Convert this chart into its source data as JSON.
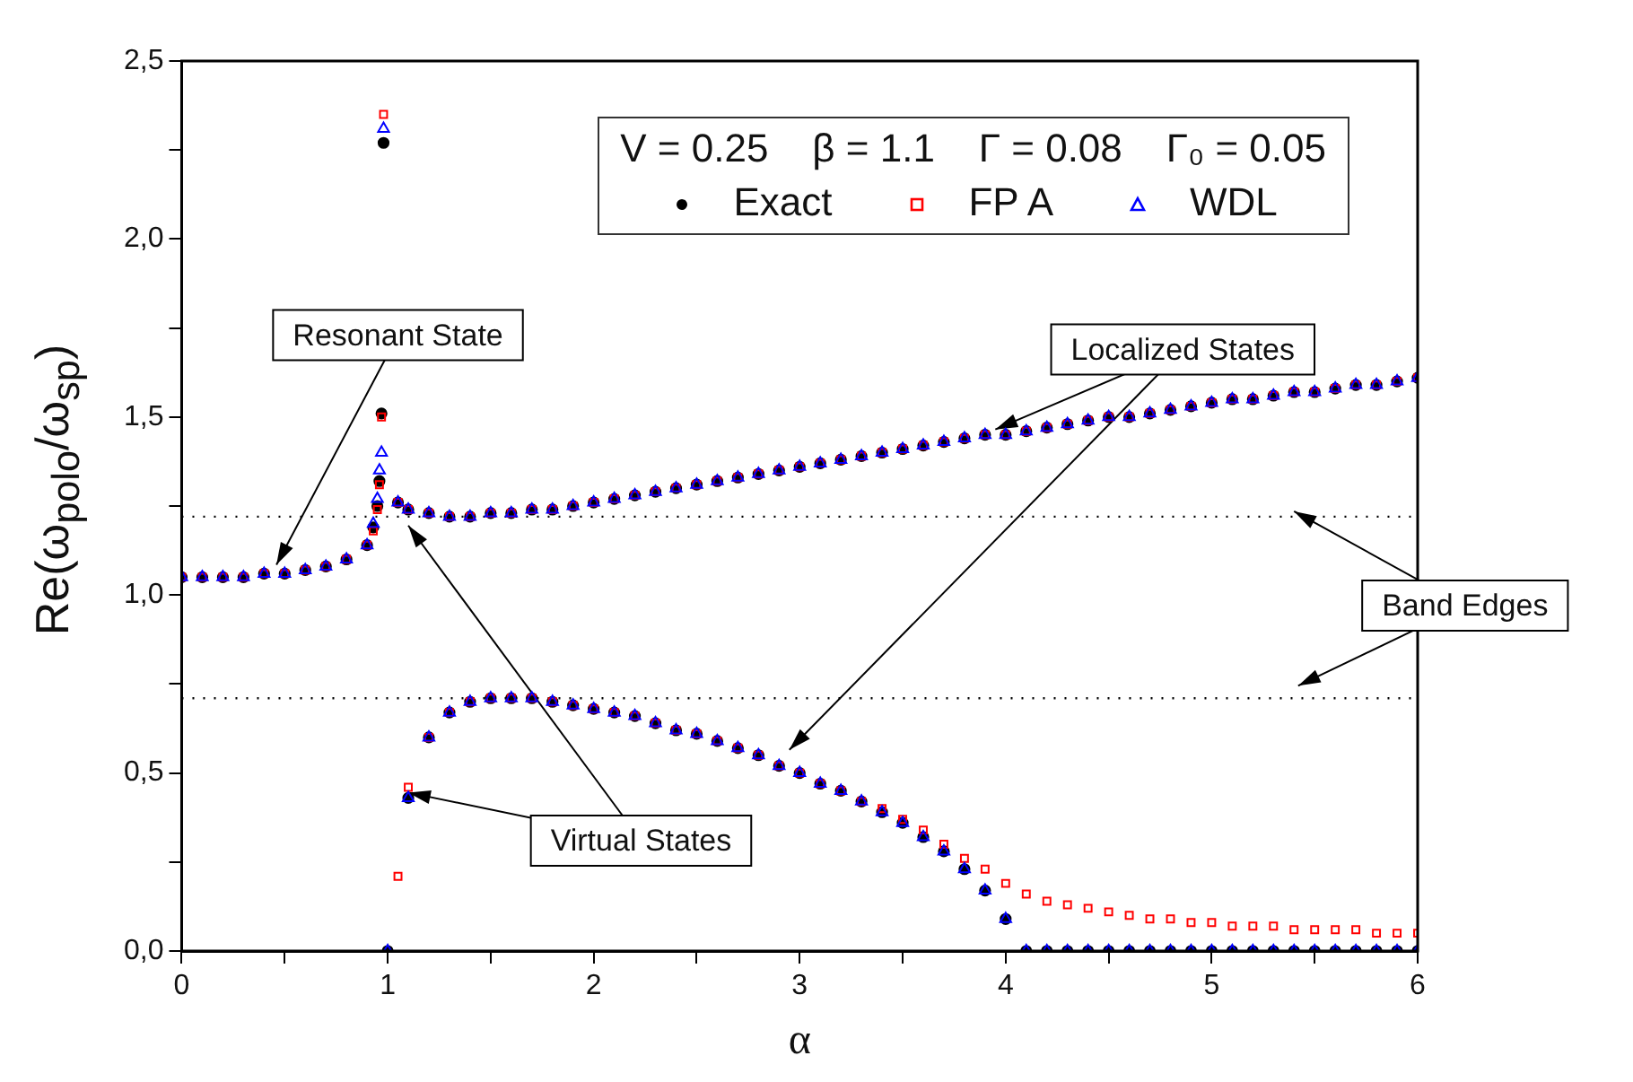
{
  "chart_data": {
    "type": "scatter",
    "xlabel": "α",
    "ylabel": "Re(ω$_{polo}$/ω$_{sp}$)",
    "legend_title": "V = 0.25    β = 1.1    Γ = 0.08    Γ₀ = 0.05",
    "legend": "top right",
    "grid": false,
    "xlim": [
      0,
      6
    ],
    "xticks": [
      0,
      {
        "value": 0.5,
        "label": null
      },
      1,
      {
        "value": 1.5,
        "label": null
      },
      2,
      {
        "value": 2.5,
        "label": null
      },
      3,
      {
        "value": 3.5,
        "label": null
      },
      4,
      {
        "value": 4.5,
        "label": null
      },
      5,
      {
        "value": 5.5,
        "label": null
      },
      6
    ],
    "ylim": [
      0,
      2.5
    ],
    "yticks": [
      {
        "value": 0,
        "label": "0,0"
      },
      {
        "value": 0.25,
        "label": null
      },
      {
        "value": 0.5,
        "label": "0,5"
      },
      {
        "value": 0.75,
        "label": null
      },
      {
        "value": 1,
        "label": "1,0"
      },
      {
        "value": 1.25,
        "label": null
      },
      {
        "value": 1.5,
        "label": "1,5"
      },
      {
        "value": 1.75,
        "label": null
      },
      {
        "value": 2,
        "label": "2,0"
      },
      {
        "value": 2.25,
        "label": null
      },
      {
        "value": 2.5,
        "label": "2,5"
      }
    ],
    "ref_lines": [
      {
        "axis": "y",
        "value": 1.22,
        "color": "#000000",
        "line_style": "dotted"
      },
      {
        "axis": "y",
        "value": 0.71,
        "color": "#000000",
        "line_style": "dotted"
      }
    ],
    "annotations": [
      {
        "text": "Resonant State",
        "x": 0.46,
        "y": 1.07
      },
      {
        "text": "Localized States",
        "x": 3.95,
        "y": 1.45
      },
      {
        "text": "Band Edges",
        "x": 5.4,
        "y": 1.22
      },
      {
        "text": "Virtual States",
        "x": 1.1,
        "y": 0.43
      }
    ],
    "series": [
      {
        "name": "Exact",
        "color": "#000000",
        "marker": "circle",
        "x": [
          0,
          0.1,
          0.2,
          0.3,
          0.4,
          0.5,
          0.6,
          0.7,
          0.8,
          0.9,
          0.93,
          0.95,
          0.96,
          0.97,
          0.98,
          1.05,
          1.1,
          1.2,
          1.3,
          1.4,
          1.5,
          1.6,
          1.7,
          1.8,
          1.9,
          2.0,
          2.1,
          2.2,
          2.3,
          2.4,
          2.5,
          2.6,
          2.7,
          2.8,
          2.9,
          3.0,
          3.1,
          3.2,
          3.3,
          3.4,
          3.5,
          3.6,
          3.7,
          3.8,
          3.9,
          4.0,
          4.1,
          4.2,
          4.3,
          4.4,
          4.5,
          4.6,
          4.7,
          4.8,
          4.9,
          5.0,
          5.1,
          5.2,
          5.3,
          5.4,
          5.5,
          5.6,
          5.7,
          5.8,
          5.9,
          6.0,
          1.0,
          1.1,
          1.2,
          1.3,
          1.4,
          1.5,
          1.6,
          1.7,
          1.8,
          1.9,
          2.0,
          2.1,
          2.2,
          2.3,
          2.4,
          2.5,
          2.6,
          2.7,
          2.8,
          2.9,
          3.0,
          3.1,
          3.2,
          3.3,
          3.4,
          3.5,
          3.6,
          3.7,
          3.8,
          3.9,
          4.0,
          4.1,
          4.2,
          4.3,
          4.4,
          4.5,
          4.6,
          4.7,
          4.8,
          4.9,
          5.0,
          5.1,
          5.2,
          5.3,
          5.4,
          5.5,
          5.6,
          5.7,
          5.8,
          5.9,
          6.0
        ],
        "values": [
          1.05,
          1.05,
          1.05,
          1.05,
          1.06,
          1.06,
          1.07,
          1.08,
          1.1,
          1.14,
          1.19,
          1.25,
          1.32,
          1.51,
          2.27,
          1.26,
          1.24,
          1.23,
          1.22,
          1.22,
          1.23,
          1.23,
          1.24,
          1.24,
          1.25,
          1.26,
          1.27,
          1.28,
          1.29,
          1.3,
          1.31,
          1.32,
          1.33,
          1.34,
          1.35,
          1.36,
          1.37,
          1.38,
          1.39,
          1.4,
          1.41,
          1.42,
          1.43,
          1.44,
          1.45,
          1.45,
          1.46,
          1.47,
          1.48,
          1.49,
          1.5,
          1.5,
          1.51,
          1.52,
          1.53,
          1.54,
          1.55,
          1.55,
          1.56,
          1.57,
          1.57,
          1.58,
          1.59,
          1.59,
          1.6,
          1.61,
          0,
          0.43,
          0.6,
          0.67,
          0.7,
          0.71,
          0.71,
          0.71,
          0.7,
          0.69,
          0.68,
          0.67,
          0.66,
          0.64,
          0.62,
          0.61,
          0.59,
          0.57,
          0.55,
          0.52,
          0.5,
          0.47,
          0.45,
          0.42,
          0.39,
          0.36,
          0.32,
          0.28,
          0.23,
          0.17,
          0.09,
          0,
          0,
          0,
          0,
          0,
          0,
          0,
          0,
          0,
          0,
          0,
          0,
          0,
          0,
          0,
          0,
          0,
          0,
          0,
          0
        ]
      },
      {
        "name": "FP A",
        "color": "#ff0000",
        "marker": "square",
        "x": [
          0,
          0.1,
          0.2,
          0.3,
          0.4,
          0.5,
          0.6,
          0.7,
          0.8,
          0.9,
          0.93,
          0.95,
          0.96,
          0.97,
          0.98,
          1.05,
          1.1,
          1.2,
          1.3,
          1.4,
          1.5,
          1.6,
          1.7,
          1.8,
          1.9,
          2.0,
          2.1,
          2.2,
          2.3,
          2.4,
          2.5,
          2.6,
          2.7,
          2.8,
          2.9,
          3.0,
          3.1,
          3.2,
          3.3,
          3.4,
          3.5,
          3.6,
          3.7,
          3.8,
          3.9,
          4.0,
          4.1,
          4.2,
          4.3,
          4.4,
          4.5,
          4.6,
          4.7,
          4.8,
          4.9,
          5.0,
          5.1,
          5.2,
          5.3,
          5.4,
          5.5,
          5.6,
          5.7,
          5.8,
          5.9,
          6.0,
          1.05,
          1.1,
          1.2,
          1.3,
          1.4,
          1.5,
          1.6,
          1.7,
          1.8,
          1.9,
          2.0,
          2.1,
          2.2,
          2.3,
          2.4,
          2.5,
          2.6,
          2.7,
          2.8,
          2.9,
          3.0,
          3.1,
          3.2,
          3.3,
          3.4,
          3.5,
          3.6,
          3.7,
          3.8,
          3.9,
          4.0,
          4.1,
          4.2,
          4.3,
          4.4,
          4.5,
          4.6,
          4.7,
          4.8,
          4.9,
          5.0,
          5.1,
          5.2,
          5.3,
          5.4,
          5.5,
          5.6,
          5.7,
          5.8,
          5.9,
          6.0
        ],
        "values": [
          1.05,
          1.05,
          1.05,
          1.05,
          1.06,
          1.06,
          1.07,
          1.08,
          1.1,
          1.14,
          1.18,
          1.24,
          1.31,
          1.5,
          2.35,
          1.26,
          1.24,
          1.23,
          1.22,
          1.22,
          1.23,
          1.23,
          1.24,
          1.24,
          1.25,
          1.26,
          1.27,
          1.28,
          1.29,
          1.3,
          1.31,
          1.32,
          1.33,
          1.34,
          1.35,
          1.36,
          1.37,
          1.38,
          1.39,
          1.4,
          1.41,
          1.42,
          1.43,
          1.44,
          1.45,
          1.45,
          1.46,
          1.47,
          1.48,
          1.49,
          1.5,
          1.5,
          1.51,
          1.52,
          1.53,
          1.54,
          1.55,
          1.55,
          1.56,
          1.57,
          1.57,
          1.58,
          1.59,
          1.59,
          1.6,
          1.61,
          0.21,
          0.46,
          0.6,
          0.67,
          0.7,
          0.71,
          0.71,
          0.71,
          0.7,
          0.69,
          0.68,
          0.67,
          0.66,
          0.64,
          0.62,
          0.61,
          0.59,
          0.57,
          0.55,
          0.52,
          0.5,
          0.47,
          0.45,
          0.42,
          0.4,
          0.37,
          0.34,
          0.3,
          0.26,
          0.23,
          0.19,
          0.16,
          0.14,
          0.13,
          0.12,
          0.11,
          0.1,
          0.09,
          0.09,
          0.08,
          0.08,
          0.07,
          0.07,
          0.07,
          0.06,
          0.06,
          0.06,
          0.06,
          0.05,
          0.05,
          0.05
        ]
      },
      {
        "name": "WDL",
        "color": "#0000ff",
        "marker": "triangle",
        "x": [
          0,
          0.1,
          0.2,
          0.3,
          0.4,
          0.5,
          0.6,
          0.7,
          0.8,
          0.9,
          0.93,
          0.95,
          0.96,
          0.97,
          0.98,
          1.05,
          1.1,
          1.2,
          1.3,
          1.4,
          1.5,
          1.6,
          1.7,
          1.8,
          1.9,
          2.0,
          2.1,
          2.2,
          2.3,
          2.4,
          2.5,
          2.6,
          2.7,
          2.8,
          2.9,
          3.0,
          3.1,
          3.2,
          3.3,
          3.4,
          3.5,
          3.6,
          3.7,
          3.8,
          3.9,
          4.0,
          4.1,
          4.2,
          4.3,
          4.4,
          4.5,
          4.6,
          4.7,
          4.8,
          4.9,
          5.0,
          5.1,
          5.2,
          5.3,
          5.4,
          5.5,
          5.6,
          5.7,
          5.8,
          5.9,
          6.0,
          1.0,
          1.1,
          1.2,
          1.3,
          1.4,
          1.5,
          1.6,
          1.7,
          1.8,
          1.9,
          2.0,
          2.1,
          2.2,
          2.3,
          2.4,
          2.5,
          2.6,
          2.7,
          2.8,
          2.9,
          3.0,
          3.1,
          3.2,
          3.3,
          3.4,
          3.5,
          3.6,
          3.7,
          3.8,
          3.9,
          4.0,
          4.1,
          4.2,
          4.3,
          4.4,
          4.5,
          4.6,
          4.7,
          4.8,
          4.9,
          5.0,
          5.1,
          5.2,
          5.3,
          5.4,
          5.5,
          5.6,
          5.7,
          5.8,
          5.9,
          6.0
        ],
        "values": [
          1.05,
          1.05,
          1.05,
          1.05,
          1.06,
          1.06,
          1.07,
          1.08,
          1.1,
          1.14,
          1.2,
          1.27,
          1.35,
          1.4,
          2.31,
          1.26,
          1.24,
          1.23,
          1.22,
          1.22,
          1.23,
          1.23,
          1.24,
          1.24,
          1.25,
          1.26,
          1.27,
          1.28,
          1.29,
          1.3,
          1.31,
          1.32,
          1.33,
          1.34,
          1.35,
          1.36,
          1.37,
          1.38,
          1.39,
          1.4,
          1.41,
          1.42,
          1.43,
          1.44,
          1.45,
          1.45,
          1.46,
          1.47,
          1.48,
          1.49,
          1.5,
          1.5,
          1.51,
          1.52,
          1.53,
          1.54,
          1.55,
          1.55,
          1.56,
          1.57,
          1.57,
          1.58,
          1.59,
          1.59,
          1.6,
          1.61,
          0,
          0.43,
          0.6,
          0.67,
          0.7,
          0.71,
          0.71,
          0.71,
          0.7,
          0.69,
          0.68,
          0.67,
          0.66,
          0.64,
          0.62,
          0.61,
          0.59,
          0.57,
          0.55,
          0.52,
          0.5,
          0.47,
          0.45,
          0.42,
          0.39,
          0.36,
          0.32,
          0.28,
          0.23,
          0.17,
          0.09,
          0,
          0,
          0,
          0,
          0,
          0,
          0,
          0,
          0,
          0,
          0,
          0,
          0,
          0,
          0,
          0,
          0,
          0,
          0,
          0
        ]
      }
    ]
  }
}
